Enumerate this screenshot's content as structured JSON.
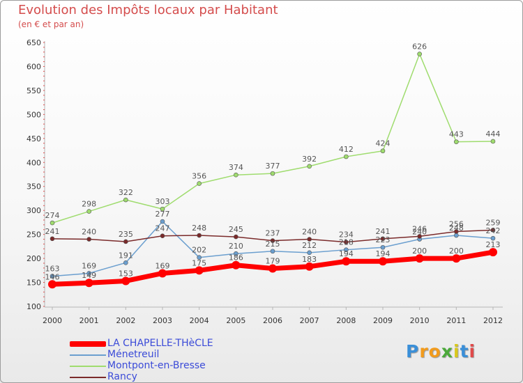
{
  "header": {
    "title": "Evolution des Impôts locaux par Habitant",
    "subtitle": "(en € et par an)"
  },
  "logo": {
    "letters": [
      "P",
      "r",
      "o",
      "x",
      "i",
      "t",
      "i"
    ],
    "colors": [
      "#3a8fd8",
      "#f29b1c",
      "#f29b1c",
      "#4aa93a",
      "#d9c81c",
      "#3a8fd8",
      "#e04a4a"
    ]
  },
  "chart_data": {
    "type": "line",
    "categories": [
      "2000",
      "2001",
      "2002",
      "2003",
      "2004",
      "2005",
      "2006",
      "2007",
      "2008",
      "2009",
      "2010",
      "2011",
      "2012"
    ],
    "ylim": [
      100,
      650
    ],
    "yticks": [
      100,
      150,
      200,
      250,
      300,
      350,
      400,
      450,
      500,
      550,
      600,
      650
    ],
    "grid": false,
    "legend_position": "bottom-left",
    "series": [
      {
        "name": "LA CHAPELLE-THèCLE",
        "color": "#ff0000",
        "values": [
          146,
          149,
          153,
          169,
          175,
          186,
          179,
          183,
          194,
          194,
          200,
          200,
          213
        ],
        "labels": [
          "146",
          "149",
          "153",
          "169",
          "175",
          "186",
          "179",
          "183",
          "194",
          "194",
          "200",
          "200",
          "213"
        ]
      },
      {
        "name": "Ménetreuil",
        "color": "#6b9fcf",
        "values": [
          163,
          169,
          191,
          277,
          202,
          210,
          215,
          212,
          218,
          223,
          240,
          248,
          242
        ],
        "labels": [
          "163",
          "169",
          "191",
          "277",
          "202",
          "210",
          "215",
          "212",
          "218",
          "223",
          "240",
          "248",
          "242"
        ]
      },
      {
        "name": "Montpont-en-Bresse",
        "color": "#9fdc6e",
        "values": [
          274,
          298,
          322,
          303,
          356,
          374,
          377,
          392,
          412,
          424,
          626,
          443,
          444
        ],
        "labels": [
          "274",
          "298",
          "322",
          "303",
          "356",
          "374",
          "377",
          "392",
          "412",
          "424",
          "626",
          "443",
          "444"
        ]
      },
      {
        "name": "Rancy",
        "color": "#7a2a2a",
        "values": [
          241,
          240,
          235,
          247,
          248,
          245,
          237,
          240,
          234,
          241,
          246,
          256,
          259
        ],
        "labels": [
          "241",
          "240",
          "235",
          "247",
          "248",
          "245",
          "237",
          "240",
          "234",
          "241",
          "246",
          "256",
          "259"
        ]
      }
    ]
  }
}
